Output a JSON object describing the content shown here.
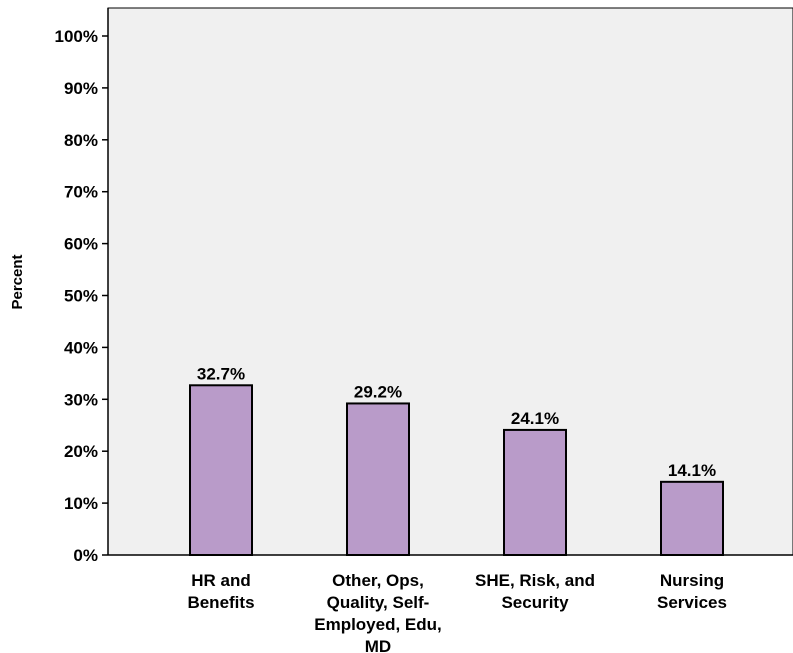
{
  "chart_data": {
    "type": "bar",
    "title": "",
    "xlabel": "",
    "ylabel": "Percent",
    "categories": [
      [
        "HR and",
        "Benefits"
      ],
      [
        "Other, Ops,",
        "Quality, Self-",
        "Employed, Edu,",
        "MD"
      ],
      [
        "SHE, Risk, and",
        "Security"
      ],
      [
        "Nursing",
        "Services"
      ]
    ],
    "values": [
      32.7,
      29.2,
      24.1,
      14.1
    ],
    "data_labels": [
      "32.7%",
      "29.2%",
      "24.1%",
      "14.1%"
    ],
    "ylim": [
      0,
      105
    ],
    "yticks": [
      0,
      10,
      20,
      30,
      40,
      50,
      60,
      70,
      80,
      90,
      100
    ],
    "ytick_labels": [
      "0%",
      "10%",
      "20%",
      "30%",
      "40%",
      "50%",
      "60%",
      "70%",
      "80%",
      "90%",
      "100%"
    ],
    "grid": false,
    "legend": "none",
    "colors": {
      "bar_fill": "#b99bc9",
      "bar_stroke": "#000000",
      "plot_background": "#f0f0f0",
      "page_background": "#ffffff"
    }
  }
}
